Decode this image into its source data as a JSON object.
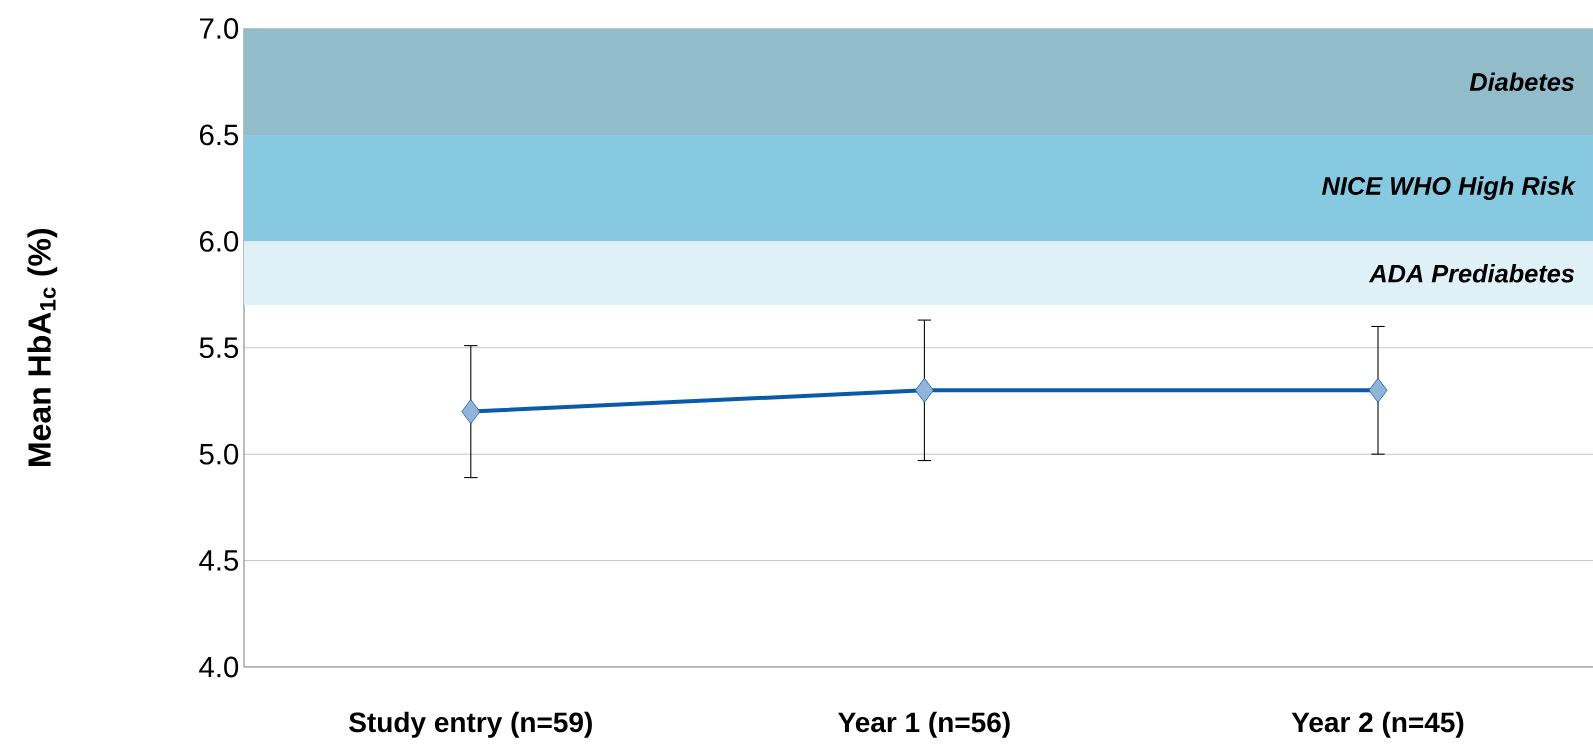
{
  "chart_data": {
    "type": "line",
    "ylabel": "Mean HbA$_{1c}$ (%)",
    "categories": [
      "Study entry (n=59)",
      "Year 1 (n=56)",
      "Year 2 (n=45)"
    ],
    "series": [
      {
        "color": "#0a5aaa",
        "values": [
          5.2,
          5.3,
          5.3
        ],
        "errors": [
          0.31,
          0.33,
          0.3
        ]
      }
    ],
    "marker": "diamond",
    "line_style": "solid",
    "ylim": [
      4.0,
      7.0
    ],
    "yticks": [
      {
        "value": 4.0,
        "label": "4.0"
      },
      {
        "value": 4.5,
        "label": "4.5"
      },
      {
        "value": 5.0,
        "label": "5.0"
      },
      {
        "value": 5.5,
        "label": "5.5"
      },
      {
        "value": 6.0,
        "label": "6.0"
      },
      {
        "value": 6.5,
        "label": "6.5"
      },
      {
        "value": 7.0,
        "label": "7.0"
      }
    ],
    "grid": "y",
    "bands": [
      {
        "axis": "y",
        "from": 6.5,
        "to": 7.0,
        "label": "Diabetes",
        "color": "#93bccb"
      },
      {
        "axis": "y",
        "from": 6.0,
        "to": 6.5,
        "label": "NICE WHO High Risk",
        "color": "#87c9e1"
      },
      {
        "axis": "y",
        "from": 5.7,
        "to": 6.0,
        "label": "ADA Prediabetes",
        "color": "#dff0f7"
      }
    ]
  }
}
